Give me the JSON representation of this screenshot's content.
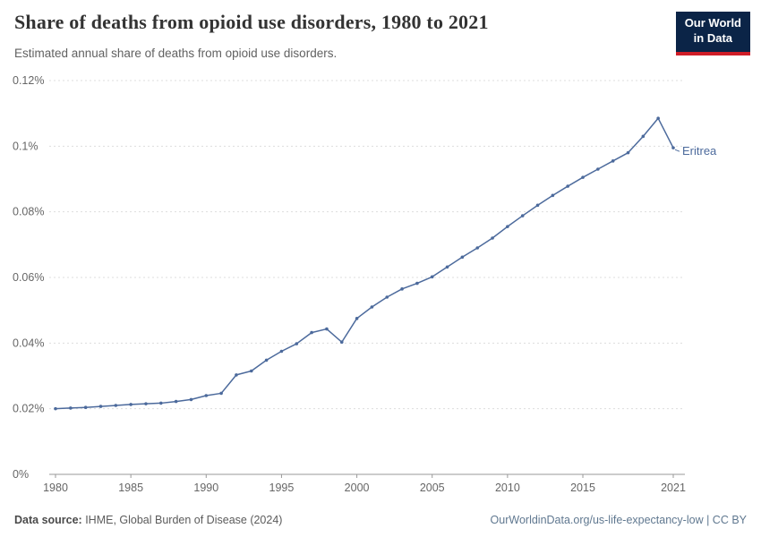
{
  "header": {
    "title": "Share of deaths from opioid use disorders, 1980 to 2021",
    "subtitle": "Estimated annual share of deaths from opioid use disorders.",
    "logo": {
      "line1": "Our World",
      "line2": "in Data"
    }
  },
  "chart_data": {
    "type": "line",
    "title": "Share of deaths from opioid use disorders, 1980 to 2021",
    "xlabel": "",
    "ylabel": "",
    "ylim": [
      0,
      0.12
    ],
    "xlim": [
      1980,
      2021
    ],
    "grid": "dashed-horizontal",
    "legend_position": "end-of-line-label",
    "x_ticks": [
      1980,
      1985,
      1990,
      1995,
      2000,
      2005,
      2010,
      2015,
      2021
    ],
    "y_ticks": [
      0,
      0.02,
      0.04,
      0.06,
      0.08,
      0.1,
      0.12
    ],
    "y_tick_labels": [
      "0%",
      "0.02%",
      "0.04%",
      "0.06%",
      "0.08%",
      "0.1%",
      "0.12%"
    ],
    "x": [
      1980,
      1981,
      1982,
      1983,
      1984,
      1985,
      1986,
      1987,
      1988,
      1989,
      1990,
      1991,
      1992,
      1993,
      1994,
      1995,
      1996,
      1997,
      1998,
      1999,
      2000,
      2001,
      2002,
      2003,
      2004,
      2005,
      2006,
      2007,
      2008,
      2009,
      2010,
      2011,
      2012,
      2013,
      2014,
      2015,
      2016,
      2017,
      2018,
      2019,
      2020,
      2021
    ],
    "series": [
      {
        "name": "Eritrea",
        "color": "#4c6a9c",
        "values": [
          0.02,
          0.0202,
          0.0204,
          0.0207,
          0.021,
          0.0213,
          0.0215,
          0.0217,
          0.0222,
          0.0228,
          0.024,
          0.0247,
          0.0303,
          0.0315,
          0.0348,
          0.0375,
          0.0398,
          0.0432,
          0.0443,
          0.0403,
          0.0475,
          0.051,
          0.054,
          0.0565,
          0.0582,
          0.0602,
          0.0632,
          0.0662,
          0.069,
          0.072,
          0.0755,
          0.0788,
          0.082,
          0.085,
          0.0878,
          0.0905,
          0.093,
          0.0955,
          0.098,
          0.103,
          0.1085,
          0.0995
        ]
      }
    ]
  },
  "footer": {
    "source_label": "Data source:",
    "source_text": " IHME, Global Burden of Disease (2024)",
    "link": "OurWorldinData.org/us-life-expectancy-low | CC BY"
  },
  "colors": {
    "line": "#4c6a9c",
    "grid": "#dddddd",
    "axis": "#999999",
    "tick_text": "#666666"
  }
}
